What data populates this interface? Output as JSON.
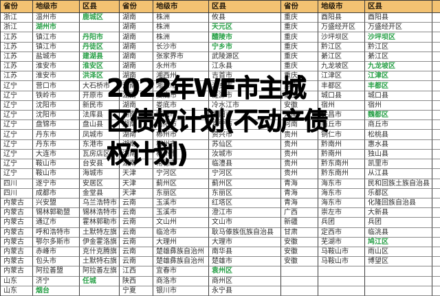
{
  "title": {
    "lines": [
      "2022年WF市主城",
      "区债权计划(不动产债",
      "权计划)"
    ]
  },
  "colors": {
    "header_bg": "#F3C272",
    "green_text": "#28a047",
    "title_text": "#000000"
  },
  "table": {
    "headers": [
      "省份",
      "地级市",
      "区县"
    ],
    "rows": [
      {
        "sets": [
          {
            "p": "浙江",
            "c": "温州市",
            "d": "鹿城区",
            "g": "d"
          },
          {
            "p": "湖南",
            "c": "株洲",
            "d": "攸县",
            "g": ""
          },
          {
            "p": "重庆",
            "c": "酉阳县",
            "d": "酉阳县",
            "g": ""
          }
        ]
      },
      {
        "sets": [
          {
            "p": "浙江",
            "c": "湖州市",
            "d": "",
            "g": "c"
          },
          {
            "p": "湖南",
            "c": "株洲",
            "d": "天元区",
            "g": "d"
          },
          {
            "p": "重庆",
            "c": "万盛经开区",
            "d": "万盛经开区",
            "g": ""
          }
        ]
      },
      {
        "sets": [
          {
            "p": "江苏",
            "c": "镇江市",
            "d": "丹阳市",
            "g": "d"
          },
          {
            "p": "湖南",
            "c": "株洲",
            "d": "醴陵市",
            "g": "d"
          },
          {
            "p": "重庆",
            "c": "沙坪坝区",
            "d": "沙坪坝区",
            "g": "d"
          }
        ]
      },
      {
        "sets": [
          {
            "p": "江苏",
            "c": "镇江市",
            "d": "丹徒区",
            "g": "d"
          },
          {
            "p": "湖南",
            "c": "长沙市",
            "d": "宁乡市",
            "g": "d"
          },
          {
            "p": "重庆",
            "c": "黔江区",
            "d": "黔江区",
            "g": ""
          }
        ]
      },
      {
        "sets": [
          {
            "p": "江苏",
            "c": "盐城市",
            "d": "建湖县",
            "g": "d"
          },
          {
            "p": "湖南",
            "c": "张家界市",
            "d": "武陵源区",
            "g": ""
          },
          {
            "p": "重庆",
            "c": "綦江区",
            "d": "綦江区",
            "g": ""
          }
        ]
      },
      {
        "sets": [
          {
            "p": "江苏",
            "c": "淮安市",
            "d": "淮安区",
            "g": "d"
          },
          {
            "p": "湖南",
            "c": "永州市",
            "d": "江永县",
            "g": ""
          },
          {
            "p": "重庆",
            "c": "九龙坡区",
            "d": "九龙坡区",
            "g": "d"
          }
        ]
      },
      {
        "sets": [
          {
            "p": "江苏",
            "c": "淮安市",
            "d": "洪泽区",
            "g": "d"
          },
          {
            "p": "湖南",
            "c": "湘西州",
            "d": "吉首市",
            "g": ""
          },
          {
            "p": "重庆",
            "c": "江津区",
            "d": "江津区",
            "g": "d"
          }
        ]
      },
      {
        "sets": [
          {
            "p": "辽宁",
            "c": "营口市",
            "d": "大石桥市",
            "g": ""
          },
          {
            "p": "湖南",
            "c": "湘潭市",
            "d": "湘乡市",
            "g": ""
          },
          {
            "p": "重庆",
            "c": "丰都区",
            "d": "丰都区",
            "g": "d"
          }
        ]
      },
      {
        "sets": [
          {
            "p": "辽宁",
            "c": "铁岭市",
            "d": "开原市",
            "g": ""
          },
          {
            "p": "湖南",
            "c": "娄底市",
            "d": "涟源市",
            "g": ""
          },
          {
            "p": "重庆",
            "c": "城口县",
            "d": "城口县",
            "g": ""
          }
        ]
      },
      {
        "sets": [
          {
            "p": "辽宁",
            "c": "沈阳市",
            "d": "新民市",
            "g": ""
          },
          {
            "p": "湖南",
            "c": "娄底市",
            "d": "冷水江市",
            "g": ""
          },
          {
            "p": "安徽",
            "c": "宿州",
            "d": "宿州",
            "g": ""
          }
        ]
      },
      {
        "sets": [
          {
            "p": "辽宁",
            "c": "沈阳市",
            "d": "法库县",
            "g": ""
          },
          {
            "p": "湖南",
            "c": "衡阳市",
            "d": "耒阳市",
            "g": ""
          },
          {
            "p": "河南",
            "c": "许昌市",
            "d": "魏都区",
            "g": "d"
          }
        ]
      },
      {
        "sets": [
          {
            "p": "辽宁",
            "c": "盘锦市",
            "d": "盘山县",
            "g": ""
          },
          {
            "p": "湖南",
            "c": "衡阳市",
            "d": "常宁市",
            "g": ""
          },
          {
            "p": "河南",
            "c": "商丘市",
            "d": "商丘市",
            "g": ""
          }
        ]
      },
      {
        "sets": [
          {
            "p": "辽宁",
            "c": "丹东市",
            "d": "凤城市",
            "g": ""
          },
          {
            "p": "湖南",
            "c": "郴州市",
            "d": "资兴市",
            "g": ""
          },
          {
            "p": "贵州",
            "c": "铜仁市",
            "d": "松桃县",
            "g": ""
          }
        ]
      },
      {
        "sets": [
          {
            "p": "辽宁",
            "c": "丹东市",
            "d": "东港市",
            "g": ""
          },
          {
            "p": "湖南",
            "c": "郴州市",
            "d": "苏仙区",
            "g": ""
          },
          {
            "p": "贵州",
            "c": "黔南州",
            "d": "惠水县",
            "g": ""
          }
        ]
      },
      {
        "sets": [
          {
            "p": "辽宁",
            "c": "大连市",
            "d": "瓦房店区",
            "g": ""
          },
          {
            "p": "湖南",
            "c": "郴州市",
            "d": "汝城市",
            "g": ""
          },
          {
            "p": "贵州",
            "c": "黔南州",
            "d": "独山县",
            "g": ""
          }
        ]
      },
      {
        "sets": [
          {
            "p": "辽宁",
            "c": "鞍山市",
            "d": "台安县",
            "g": ""
          },
          {
            "p": "湖南",
            "c": "常德市",
            "d": "临澧县",
            "g": ""
          },
          {
            "p": "贵州",
            "c": "黔东南州",
            "d": "凯里市",
            "g": ""
          }
        ]
      },
      {
        "sets": [
          {
            "p": "辽宁",
            "c": "鞍山市",
            "d": "海城市",
            "g": ""
          },
          {
            "p": "天津",
            "c": "宁河区",
            "d": "宁河区",
            "g": ""
          },
          {
            "p": "贵州",
            "c": "黔东南州",
            "d": "从江县",
            "g": ""
          }
        ]
      },
      {
        "sets": [
          {
            "p": "四川",
            "c": "遂宁市",
            "d": "安居区",
            "g": ""
          },
          {
            "p": "天津",
            "c": "蓟州区",
            "d": "蓟州区",
            "g": ""
          },
          {
            "p": "青海",
            "c": "海东市",
            "d": "民和回族土族自治县",
            "g": ""
          }
        ]
      },
      {
        "sets": [
          {
            "p": "四川",
            "c": "成都市",
            "d": "金堂县",
            "g": ""
          },
          {
            "p": "天津",
            "c": "东丽区",
            "d": "东丽区",
            "g": ""
          },
          {
            "p": "青海",
            "c": "海东市",
            "d": "乐都区",
            "g": ""
          }
        ]
      },
      {
        "sets": [
          {
            "p": "内蒙古",
            "c": "兴安盟",
            "d": "乌兰浩特市",
            "g": ""
          },
          {
            "p": "云南",
            "c": "玉溪市",
            "d": "红塔区",
            "g": ""
          },
          {
            "p": "青海",
            "c": "海东市",
            "d": "化隆回族自治县",
            "g": ""
          }
        ]
      },
      {
        "sets": [
          {
            "p": "内蒙古",
            "c": "锡林郭勒盟",
            "d": "锡林浩特市",
            "g": ""
          },
          {
            "p": "云南",
            "c": "玉溪市",
            "d": "澄江市",
            "g": ""
          },
          {
            "p": "广西",
            "c": "崇左市",
            "d": "大新县",
            "g": ""
          }
        ]
      },
      {
        "sets": [
          {
            "p": "内蒙古",
            "c": "通辽市",
            "d": "霍林郭勒市",
            "g": ""
          },
          {
            "p": "云南",
            "c": "文山州",
            "d": "文山市",
            "g": ""
          },
          {
            "p": "新疆",
            "c": "兵团",
            "d": "兵团",
            "g": ""
          }
        ]
      },
      {
        "sets": [
          {
            "p": "内蒙古",
            "c": "呼和浩特市",
            "d": "土默特左旗",
            "g": ""
          },
          {
            "p": "云南",
            "c": "临沧市",
            "d": "耿马傣族佤族自治县",
            "g": ""
          },
          {
            "p": "甘肃",
            "c": "定西市",
            "d": "临洮县",
            "g": ""
          }
        ]
      },
      {
        "sets": [
          {
            "p": "内蒙古",
            "c": "鄂尔多斯市",
            "d": "伊金霍洛旗",
            "g": ""
          },
          {
            "p": "云南",
            "c": "大理州",
            "d": "大理市",
            "g": ""
          },
          {
            "p": "安徽",
            "c": "芜湖市",
            "d": "鸠江区",
            "g": "d"
          }
        ]
      },
      {
        "sets": [
          {
            "p": "内蒙古",
            "c": "赤峰市",
            "d": "克什克腾旗",
            "g": ""
          },
          {
            "p": "云南",
            "c": "楚雄彝族自治州",
            "d": "南华县",
            "g": ""
          },
          {
            "p": "安徽",
            "c": "马鞍山市",
            "d": "雨山区",
            "g": ""
          }
        ]
      },
      {
        "sets": [
          {
            "p": "内蒙古",
            "c": "包头市",
            "d": "土默特右旗",
            "g": ""
          },
          {
            "p": "云南",
            "c": "楚雄彝族自治州",
            "d": "楚雄市",
            "g": ""
          },
          {
            "p": "安徽",
            "c": "马鞍山市",
            "d": "博望区",
            "g": ""
          }
        ]
      },
      {
        "sets": [
          {
            "p": "内蒙古",
            "c": "阿拉善盟",
            "d": "阿拉善左旗",
            "g": ""
          },
          {
            "p": "江西",
            "c": "宜春市",
            "d": "袁州区",
            "g": "d"
          },
          {
            "p": "",
            "c": "",
            "d": "",
            "g": ""
          }
        ]
      },
      {
        "sets": [
          {
            "p": "山东",
            "c": "济宁",
            "d": "任城",
            "g": "d"
          },
          {
            "p": "陕西",
            "c": "商洛市",
            "d": "商州区",
            "g": ""
          },
          {
            "p": "",
            "c": "",
            "d": "",
            "g": ""
          }
        ]
      },
      {
        "sets": [
          {
            "p": "山东",
            "c": "烟台",
            "d": "",
            "g": "c"
          },
          {
            "p": "宁夏",
            "c": "银川市",
            "d": "永宁县",
            "g": ""
          },
          {
            "p": "",
            "c": "",
            "d": "",
            "g": ""
          }
        ]
      }
    ]
  }
}
